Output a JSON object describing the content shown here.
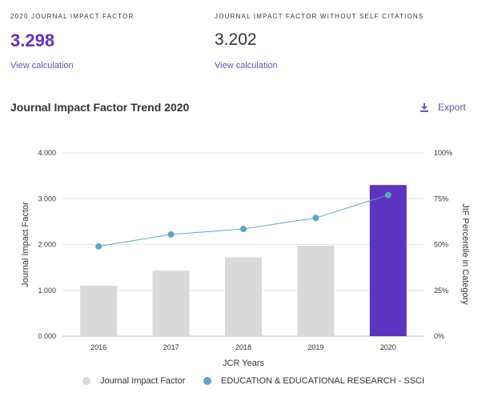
{
  "metrics": {
    "jif": {
      "label": "2020 JOURNAL IMPACT FACTOR",
      "value": "3.298",
      "link": "View calculation"
    },
    "jif_no_self": {
      "label": "JOURNAL IMPACT FACTOR WITHOUT SELF CITATIONS",
      "value": "3.202",
      "link": "View calculation"
    }
  },
  "section": {
    "title": "Journal Impact Factor Trend 2020",
    "export_label": "Export"
  },
  "colors": {
    "accent": "#5e33bf",
    "bar": "#d9d9d9",
    "line": "#5ba7bf",
    "grid": "#e6e6e6"
  },
  "chart_data": {
    "type": "bar",
    "categories": [
      "2016",
      "2017",
      "2018",
      "2019",
      "2020"
    ],
    "series": [
      {
        "name": "Journal Impact Factor",
        "type": "bar",
        "axis": "left",
        "values": [
          1.1,
          1.43,
          1.72,
          1.97,
          3.298
        ]
      },
      {
        "name": "EDUCATION & EDUCATIONAL RESEARCH - SSCI",
        "type": "line",
        "axis": "right",
        "values": [
          49,
          55.5,
          58.5,
          64.5,
          77
        ]
      }
    ],
    "xlabel": "JCR Years",
    "ylabel": "Journal Impact Factor",
    "y2label": "JIF Percentile in Category",
    "ylim": [
      0,
      4
    ],
    "y2lim": [
      0,
      100
    ],
    "y_ticks": [
      "0.000",
      "1.000",
      "2.000",
      "3.000",
      "4.000"
    ],
    "y2_ticks": [
      "0%",
      "25%",
      "50%",
      "75%",
      "100%"
    ],
    "highlight_category": "2020",
    "grid": true,
    "legend": "bottom"
  }
}
